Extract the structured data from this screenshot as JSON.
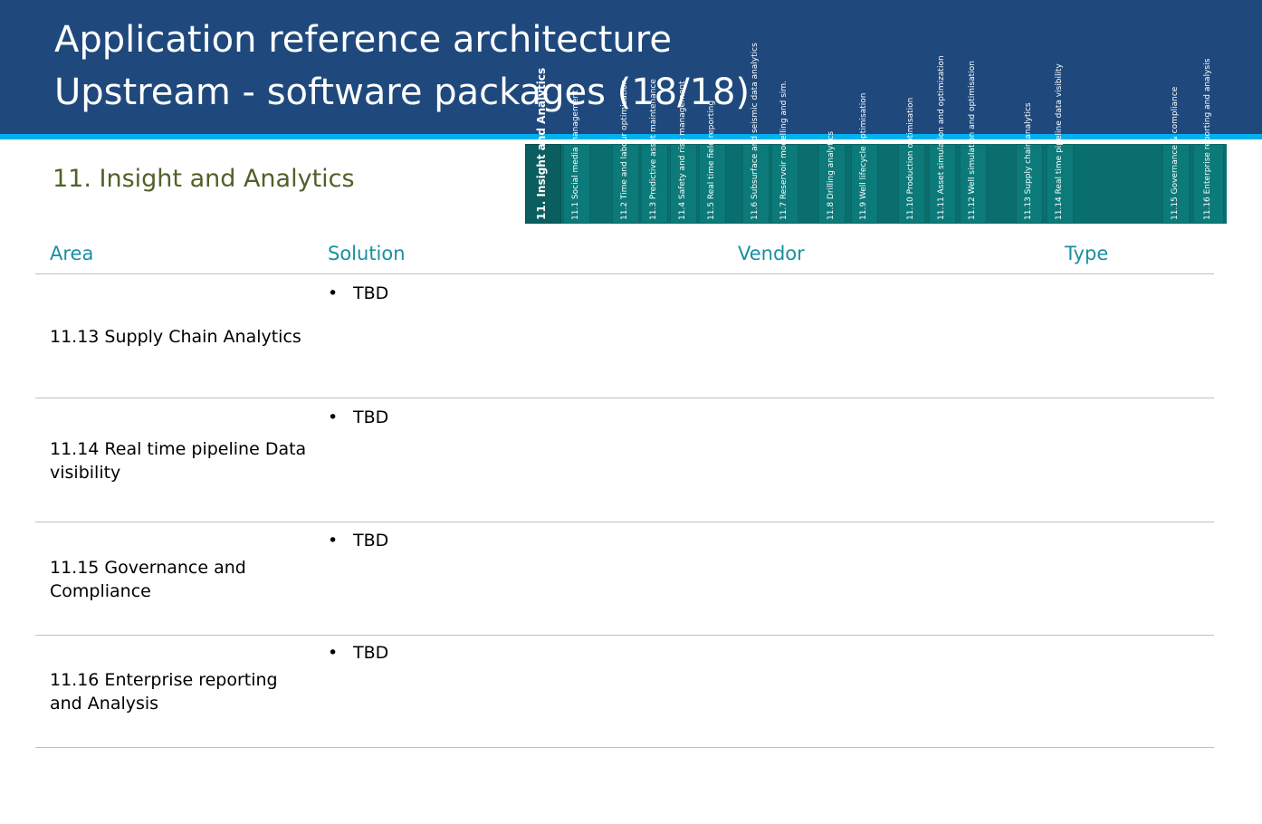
{
  "header": {
    "title_line1": "Application reference architecture",
    "title_line2": "Upstream - software packages (18/18)"
  },
  "section_title": "11. Insight and Analytics",
  "banner": {
    "main_label": "11. Insight and Analytics",
    "tiles": [
      "11.1 Social media management",
      "11.2 Time and labour optimisation",
      "11.3 Predictive asset maintenance",
      "11.4 Safety and risk management",
      "11.5 Real time field reporting",
      "11.6 Subsurface and seismic data analytics",
      "11.7 Reservoir modelling and sim.",
      "11.8 Drilling analytics",
      "11.9 Well lifecycle optimisation",
      "11.10 Production optimisation",
      "11.11 Asset simulation and optimization",
      "11.12 Well simulation and optimisation",
      "11.13 Supply chain analytics",
      "11.14 Real time pipeline data visibility",
      "11.15 Governance & compliance",
      "11.16 Enterprise reporting and analysis"
    ]
  },
  "table": {
    "headers": {
      "area": "Area",
      "solution": "Solution",
      "vendor": "Vendor",
      "type": "Type"
    },
    "bullet": "•",
    "rows": [
      {
        "area": "11.13 Supply Chain Analytics",
        "solution": "TBD"
      },
      {
        "area": "11.14 Real time pipeline Data visibility",
        "solution": "TBD"
      },
      {
        "area": "11.15 Governance and Compliance",
        "solution": "TBD"
      },
      {
        "area": "11.16 Enterprise reporting and Analysis",
        "solution": "TBD"
      }
    ]
  }
}
